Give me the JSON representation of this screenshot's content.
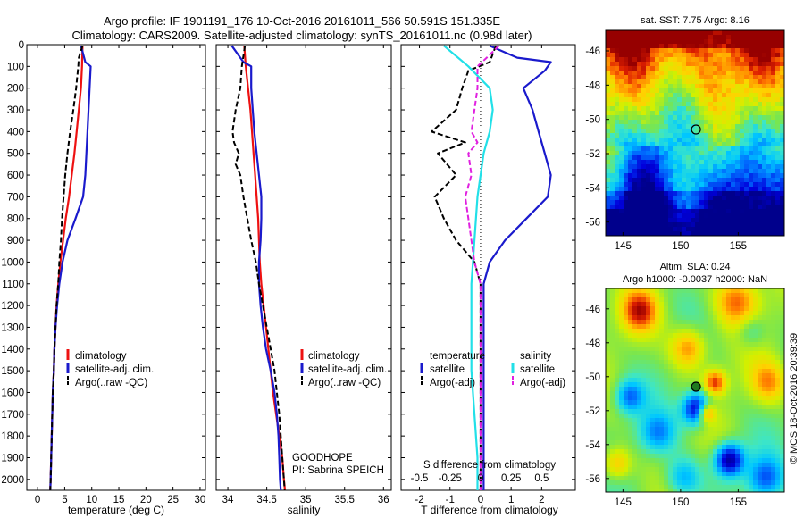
{
  "title_line1": "Argo profile: IF 1901191_176 10-Oct-2016 20161011_566 50.591S 151.335E",
  "title_line2": "Climatology: CARS2009. Satellite-adjusted climatology: synTS_20161011.nc (0.98d later)",
  "colors": {
    "climatology": "#ee1111",
    "satellite": "#1a1acc",
    "argo": "#000000",
    "satellite_salinity": "#22e0e8",
    "argo_salinity": "#e020e0"
  },
  "chart_data": [
    {
      "type": "line",
      "id": "temperature",
      "xlabel": "temperature (deg C)",
      "xlim": [
        -2,
        31
      ],
      "xticks": [
        0,
        5,
        10,
        15,
        20,
        25,
        30
      ],
      "ylim": [
        2050,
        0
      ],
      "yticks": [
        0,
        100,
        200,
        300,
        400,
        500,
        600,
        700,
        800,
        900,
        1000,
        1100,
        1200,
        1300,
        1400,
        1500,
        1600,
        1700,
        1800,
        1900,
        2000
      ],
      "legend": [
        "climatology",
        "satellite-adj. clim.",
        "Argo(..raw -QC)"
      ],
      "series": [
        {
          "name": "climatology",
          "color": "#ee1111",
          "dash": false,
          "points": [
            [
              8.3,
              5
            ],
            [
              8.2,
              100
            ],
            [
              8.0,
              200
            ],
            [
              7.6,
              300
            ],
            [
              7.2,
              400
            ],
            [
              6.8,
              500
            ],
            [
              6.3,
              600
            ],
            [
              5.8,
              700
            ],
            [
              5.2,
              800
            ],
            [
              4.7,
              900
            ],
            [
              4.2,
              1000
            ],
            [
              3.8,
              1100
            ],
            [
              3.5,
              1200
            ],
            [
              3.3,
              1300
            ],
            [
              3.1,
              1400
            ],
            [
              3.0,
              1500
            ],
            [
              2.8,
              1600
            ],
            [
              2.7,
              1700
            ],
            [
              2.6,
              1800
            ],
            [
              2.5,
              1900
            ],
            [
              2.4,
              2000
            ],
            [
              2.3,
              2070
            ]
          ]
        },
        {
          "name": "satellite-adj. clim.",
          "color": "#1a1acc",
          "dash": false,
          "points": [
            [
              8.0,
              5
            ],
            [
              8.8,
              80
            ],
            [
              9.8,
              100
            ],
            [
              9.6,
              200
            ],
            [
              9.4,
              300
            ],
            [
              9.2,
              400
            ],
            [
              9.0,
              500
            ],
            [
              8.8,
              600
            ],
            [
              8.4,
              700
            ],
            [
              7.0,
              800
            ],
            [
              5.5,
              900
            ],
            [
              4.6,
              1000
            ],
            [
              4.0,
              1100
            ],
            [
              3.6,
              1200
            ],
            [
              3.3,
              1300
            ],
            [
              3.1,
              1400
            ],
            [
              3.0,
              1500
            ],
            [
              2.8,
              1600
            ],
            [
              2.7,
              1700
            ],
            [
              2.6,
              1800
            ],
            [
              2.5,
              1900
            ],
            [
              2.4,
              2000
            ],
            [
              2.3,
              2070
            ]
          ]
        },
        {
          "name": "Argo(..raw -QC)",
          "color": "#000000",
          "dash": true,
          "points": [
            [
              8.3,
              5
            ],
            [
              7.6,
              60
            ],
            [
              7.5,
              100
            ],
            [
              7.1,
              200
            ],
            [
              6.6,
              300
            ],
            [
              6.0,
              400
            ],
            [
              5.5,
              500
            ],
            [
              5.1,
              600
            ],
            [
              4.8,
              700
            ],
            [
              4.5,
              800
            ],
            [
              4.3,
              900
            ],
            [
              4.0,
              1000
            ],
            [
              3.8,
              1100
            ],
            [
              3.5,
              1200
            ],
            [
              3.3,
              1300
            ],
            [
              3.1,
              1400
            ],
            [
              3.0,
              1500
            ],
            [
              2.8,
              1600
            ],
            [
              2.7,
              1700
            ],
            [
              2.6,
              1800
            ],
            [
              2.5,
              1900
            ],
            [
              2.4,
              2000
            ],
            [
              2.3,
              2070
            ]
          ]
        }
      ]
    },
    {
      "type": "line",
      "id": "salinity",
      "xlabel": "salinity",
      "xlim": [
        33.85,
        36.1
      ],
      "xticks": [
        34,
        34.5,
        35,
        35.5,
        36
      ],
      "ylim": [
        2050,
        0
      ],
      "legend": [
        "climatology",
        "satellite-adj. clim.",
        "Argo(..raw -QC)"
      ],
      "annotation": [
        "GOODHOPE",
        "PI: Sabrina SPEICH"
      ],
      "series": [
        {
          "name": "climatology",
          "color": "#ee1111",
          "dash": false,
          "points": [
            [
              34.21,
              5
            ],
            [
              34.23,
              100
            ],
            [
              34.26,
              200
            ],
            [
              34.29,
              300
            ],
            [
              34.31,
              400
            ],
            [
              34.33,
              500
            ],
            [
              34.35,
              600
            ],
            [
              34.37,
              700
            ],
            [
              34.39,
              800
            ],
            [
              34.4,
              900
            ],
            [
              34.41,
              1000
            ],
            [
              34.43,
              1100
            ],
            [
              34.46,
              1200
            ],
            [
              34.49,
              1300
            ],
            [
              34.52,
              1400
            ],
            [
              34.55,
              1500
            ],
            [
              34.58,
              1600
            ],
            [
              34.62,
              1700
            ],
            [
              34.66,
              1800
            ],
            [
              34.7,
              1900
            ],
            [
              34.72,
              2000
            ],
            [
              34.74,
              2070
            ]
          ]
        },
        {
          "name": "satellite-adj. clim.",
          "color": "#1a1acc",
          "dash": false,
          "points": [
            [
              34.05,
              5
            ],
            [
              34.2,
              80
            ],
            [
              34.3,
              100
            ],
            [
              34.3,
              200
            ],
            [
              34.32,
              300
            ],
            [
              34.34,
              400
            ],
            [
              34.37,
              500
            ],
            [
              34.4,
              600
            ],
            [
              34.43,
              700
            ],
            [
              34.43,
              800
            ],
            [
              34.42,
              900
            ],
            [
              34.4,
              1000
            ],
            [
              34.4,
              1100
            ],
            [
              34.42,
              1200
            ],
            [
              34.45,
              1300
            ],
            [
              34.49,
              1400
            ],
            [
              34.55,
              1500
            ],
            [
              34.6,
              1600
            ],
            [
              34.63,
              1700
            ],
            [
              34.65,
              1800
            ],
            [
              34.66,
              1900
            ],
            [
              34.67,
              2000
            ],
            [
              34.68,
              2050
            ]
          ]
        },
        {
          "name": "Argo(..raw -QC)",
          "color": "#000000",
          "dash": true,
          "points": [
            [
              34.22,
              5
            ],
            [
              34.18,
              100
            ],
            [
              34.16,
              200
            ],
            [
              34.1,
              300
            ],
            [
              34.06,
              400
            ],
            [
              34.08,
              450
            ],
            [
              34.14,
              500
            ],
            [
              34.1,
              550
            ],
            [
              34.16,
              600
            ],
            [
              34.2,
              700
            ],
            [
              34.25,
              800
            ],
            [
              34.3,
              900
            ],
            [
              34.36,
              1000
            ],
            [
              34.4,
              1100
            ],
            [
              34.45,
              1200
            ],
            [
              34.5,
              1300
            ],
            [
              34.55,
              1400
            ],
            [
              34.6,
              1500
            ],
            [
              34.63,
              1600
            ],
            [
              34.66,
              1700
            ],
            [
              34.68,
              1800
            ],
            [
              34.7,
              1900
            ],
            [
              34.72,
              2000
            ],
            [
              34.73,
              2050
            ]
          ]
        }
      ]
    },
    {
      "type": "line",
      "id": "difference",
      "xlabel": "T difference from climatology",
      "xlabel_top": "S difference from climatology",
      "xlim": [
        -2.6,
        3.1
      ],
      "xticks": [
        -2,
        -1,
        0,
        1,
        2
      ],
      "xticks_top": [
        "-0.5",
        "-0.25",
        "0",
        "0.25",
        "0.5"
      ],
      "ylim": [
        2050,
        0
      ],
      "legend_left": {
        "title": "temperature",
        "items": [
          "satellite",
          "Argo(-adj)"
        ]
      },
      "legend_right": {
        "title": "salinity",
        "items": [
          "satellite",
          "Argo(-adj)"
        ]
      },
      "series": [
        {
          "name": "temperature satellite",
          "color": "#1a1acc",
          "dash": false,
          "points": [
            [
              0.3,
              5
            ],
            [
              1.2,
              60
            ],
            [
              2.3,
              80
            ],
            [
              2.1,
              120
            ],
            [
              1.4,
              200
            ],
            [
              1.7,
              300
            ],
            [
              1.9,
              400
            ],
            [
              2.1,
              500
            ],
            [
              2.3,
              600
            ],
            [
              2.2,
              700
            ],
            [
              1.5,
              800
            ],
            [
              0.8,
              900
            ],
            [
              0.3,
              1000
            ],
            [
              0.1,
              1100
            ],
            [
              0.1,
              1200
            ],
            [
              0.1,
              1400
            ],
            [
              0.1,
              1600
            ],
            [
              0.1,
              1800
            ],
            [
              0.1,
              2000
            ],
            [
              0.1,
              2070
            ]
          ]
        },
        {
          "name": "temperature Argo(-adj)",
          "color": "#000000",
          "dash": true,
          "points": [
            [
              0.5,
              5
            ],
            [
              0.3,
              80
            ],
            [
              -0.4,
              120
            ],
            [
              -0.6,
              200
            ],
            [
              -0.8,
              300
            ],
            [
              -1.6,
              400
            ],
            [
              -0.5,
              450
            ],
            [
              -1.4,
              500
            ],
            [
              -0.8,
              600
            ],
            [
              -1.5,
              700
            ],
            [
              -1.2,
              800
            ],
            [
              -0.8,
              900
            ],
            [
              -0.2,
              1000
            ],
            [
              0,
              1100
            ],
            [
              0,
              1200
            ],
            [
              0,
              1400
            ],
            [
              0,
              1600
            ],
            [
              0,
              1800
            ],
            [
              0,
              2000
            ],
            [
              0,
              2070
            ]
          ]
        },
        {
          "name": "salinity satellite",
          "color": "#22e0e8",
          "dash": false,
          "points": [
            [
              -1.2,
              5
            ],
            [
              -0.4,
              100
            ],
            [
              0.3,
              200
            ],
            [
              0.4,
              300
            ],
            [
              0.3,
              400
            ],
            [
              0.1,
              500
            ],
            [
              -0.1,
              700
            ],
            [
              -0.2,
              900
            ],
            [
              -0.3,
              1100
            ],
            [
              -0.3,
              1300
            ],
            [
              -0.3,
              1500
            ],
            [
              -0.2,
              1700
            ],
            [
              -0.1,
              1900
            ],
            [
              -0.1,
              2070
            ]
          ]
        },
        {
          "name": "salinity Argo(-adj)",
          "color": "#e020e0",
          "dash": true,
          "points": [
            [
              0.6,
              5
            ],
            [
              0.2,
              60
            ],
            [
              -0.1,
              100
            ],
            [
              -0.1,
              200
            ],
            [
              -0.2,
              300
            ],
            [
              -0.3,
              400
            ],
            [
              -0.1,
              450
            ],
            [
              -0.4,
              500
            ],
            [
              -0.3,
              600
            ],
            [
              -0.5,
              700
            ],
            [
              -0.4,
              800
            ],
            [
              -0.3,
              900
            ],
            [
              -0.2,
              1000
            ],
            [
              0,
              1100
            ],
            [
              0,
              1200
            ],
            [
              0,
              1400
            ],
            [
              0,
              1600
            ],
            [
              0,
              1800
            ],
            [
              0,
              2000
            ],
            [
              0,
              2050
            ]
          ]
        }
      ]
    },
    {
      "type": "heatmap",
      "id": "sst_map",
      "title": "sat. SST: 7.75  Argo: 8.16",
      "xlim": [
        143.5,
        159
      ],
      "ylim": [
        -56.8,
        -44.8
      ],
      "xticks": [
        145,
        150,
        155
      ],
      "yticks": [
        -46,
        -48,
        -50,
        -52,
        -54,
        -56
      ],
      "marker": {
        "lon": 151.335,
        "lat": -50.591
      }
    },
    {
      "type": "heatmap",
      "id": "sla_map",
      "title_line1": "Altim. SLA: 0.24",
      "title_line2": "Argo h1000: -0.0037  h2000: NaN",
      "xlim": [
        143.5,
        159
      ],
      "ylim": [
        -56.8,
        -44.8
      ],
      "xticks": [
        145,
        150,
        155
      ],
      "yticks": [
        -46,
        -48,
        -50,
        -52,
        -54,
        -56
      ],
      "marker": {
        "lon": 151.335,
        "lat": -50.591
      },
      "side_text": "©IMOS 18-Oct-2016 20:39:39"
    }
  ]
}
